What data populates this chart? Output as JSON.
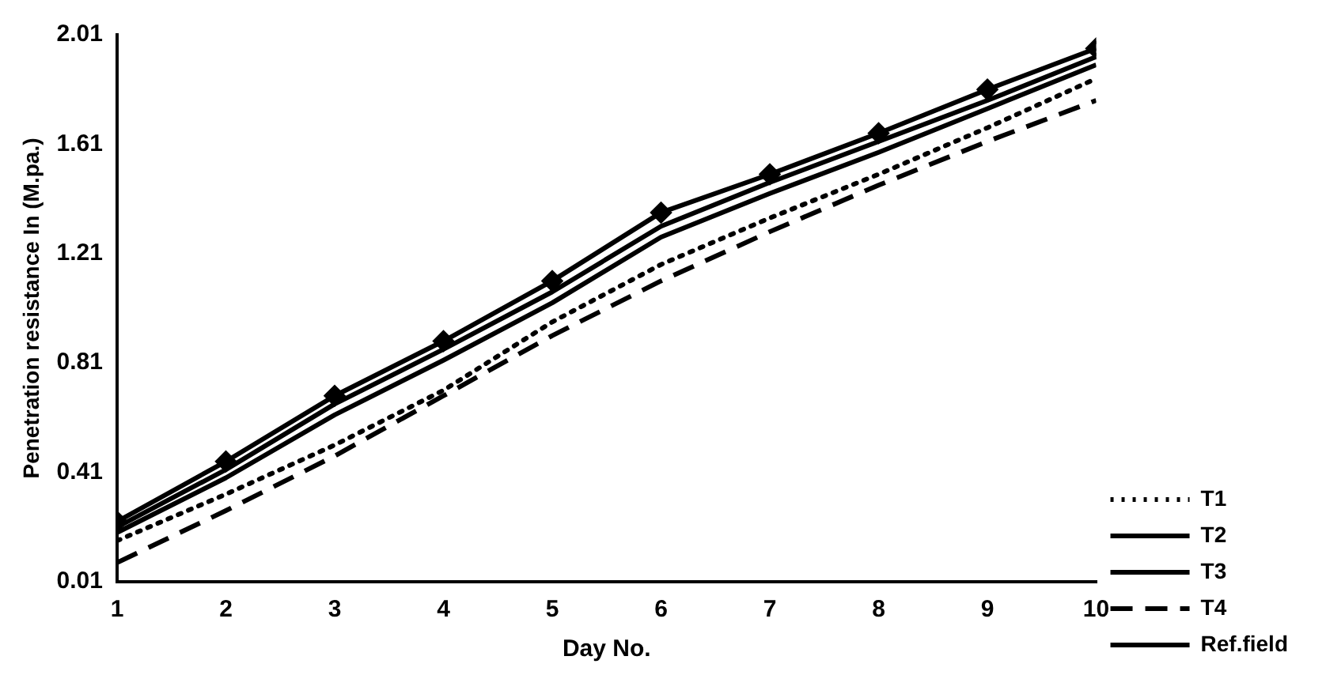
{
  "chart_data": {
    "type": "line",
    "xlabel": "Day No.",
    "ylabel": "Penetration resistance In (M.pa.)",
    "x": [
      1,
      2,
      3,
      4,
      5,
      6,
      7,
      8,
      9,
      10
    ],
    "xlim": [
      1,
      10
    ],
    "xticks": [
      1,
      2,
      3,
      4,
      5,
      6,
      7,
      8,
      9,
      10
    ],
    "ylim": [
      0.01,
      2.01
    ],
    "yticks": [
      0.01,
      0.41,
      0.81,
      1.21,
      1.61,
      2.01
    ],
    "grid": false,
    "legend": "bottom right",
    "series": [
      {
        "name": "T1",
        "color": "#000000",
        "line_style": "dotted",
        "marker": "none",
        "values": [
          0.16,
          0.33,
          0.51,
          0.71,
          0.96,
          1.17,
          1.34,
          1.5,
          1.67,
          1.85
        ]
      },
      {
        "name": "T2",
        "color": "#000000",
        "line_style": "solid",
        "marker": "none",
        "values": [
          0.19,
          0.39,
          0.62,
          0.82,
          1.03,
          1.27,
          1.43,
          1.58,
          1.74,
          1.9
        ]
      },
      {
        "name": "T3",
        "color": "#000000",
        "line_style": "solid",
        "marker": "none",
        "values": [
          0.21,
          0.42,
          0.66,
          0.86,
          1.07,
          1.31,
          1.47,
          1.62,
          1.77,
          1.93
        ]
      },
      {
        "name": "T4",
        "color": "#000000",
        "line_style": "dashed",
        "marker": "none",
        "values": [
          0.08,
          0.27,
          0.47,
          0.69,
          0.91,
          1.11,
          1.29,
          1.46,
          1.62,
          1.77
        ]
      },
      {
        "name": "Ref.field",
        "color": "#000000",
        "line_style": "solid",
        "marker": "diamond",
        "values": [
          0.23,
          0.45,
          0.69,
          0.89,
          1.11,
          1.36,
          1.5,
          1.65,
          1.81,
          1.96
        ]
      }
    ]
  }
}
